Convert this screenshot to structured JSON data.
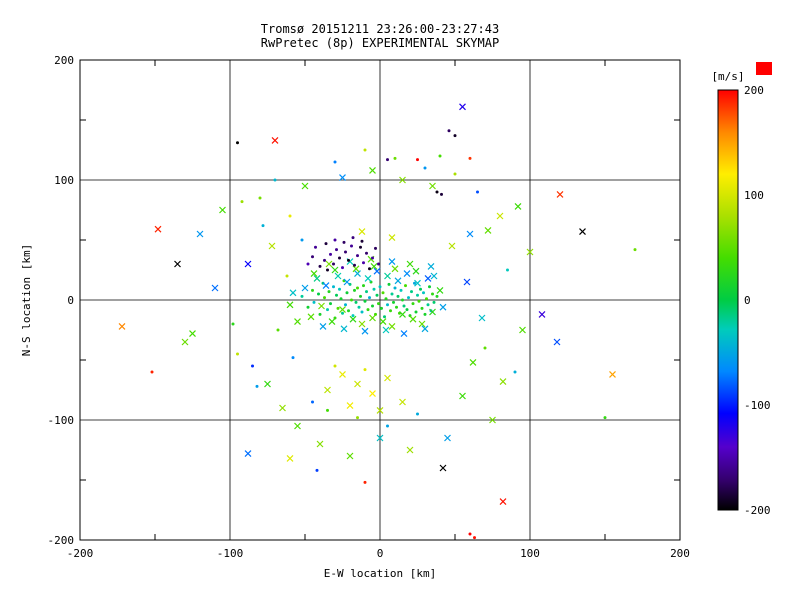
{
  "title": {
    "line1": "Tromsø 20151211 23:26:00-23:27:43",
    "line2": "RwPretec (8p) EXPERIMENTAL SKYMAP"
  },
  "colors": {
    "title": "#a03030",
    "axis": "#000000",
    "background": "#ffffff",
    "colorbar_label": "#ff0000",
    "corner_box": "#ff0000"
  },
  "chart_data": {
    "type": "scatter",
    "title": "Tromsø 20151211 23:26:00-23:27:43",
    "subtitle": "RwPretec (8p) EXPERIMENTAL SKYMAP",
    "xlabel": "E-W location [km]",
    "ylabel": "N-S location [km]",
    "xlim": [
      -200,
      200
    ],
    "ylim": [
      -200,
      200
    ],
    "grid": true,
    "x_tick_labels": [
      "-200",
      "-100",
      "0",
      "100",
      "200"
    ],
    "y_tick_labels": [
      "200",
      "100",
      "0",
      "-100",
      "-200"
    ],
    "colorbar": {
      "label": "[m/s]",
      "ticks": [
        "200",
        "100",
        "0",
        "-100",
        "-200"
      ],
      "range": [
        -200,
        200
      ],
      "stops": [
        [
          0,
          "#000000"
        ],
        [
          0.07,
          "#33006b"
        ],
        [
          0.15,
          "#5500cc"
        ],
        [
          0.23,
          "#0000ff"
        ],
        [
          0.33,
          "#0088ff"
        ],
        [
          0.43,
          "#00ccbb"
        ],
        [
          0.5,
          "#00cc44"
        ],
        [
          0.6,
          "#44dd00"
        ],
        [
          0.7,
          "#aae000"
        ],
        [
          0.8,
          "#ffee00"
        ],
        [
          0.9,
          "#ff8800"
        ],
        [
          1,
          "#ff0000"
        ]
      ]
    },
    "marker_legend": {
      "0": "dot",
      "1": "cross"
    },
    "points": [
      [
        -52,
        3,
        -20,
        0
      ],
      [
        -48,
        -6,
        10,
        0
      ],
      [
        -45,
        8,
        25,
        0
      ],
      [
        -44,
        -2,
        -35,
        0
      ],
      [
        -41,
        5,
        0,
        0
      ],
      [
        -40,
        -12,
        15,
        0
      ],
      [
        -38,
        14,
        -10,
        0
      ],
      [
        -37,
        2,
        40,
        0
      ],
      [
        -35,
        -8,
        -25,
        0
      ],
      [
        -34,
        7,
        20,
        0
      ],
      [
        -33,
        -3,
        5,
        0
      ],
      [
        -31,
        11,
        -40,
        0
      ],
      [
        -30,
        -15,
        30,
        0
      ],
      [
        -29,
        4,
        -5,
        0
      ],
      [
        -28,
        -7,
        45,
        0
      ],
      [
        -27,
        9,
        -30,
        0
      ],
      [
        -26,
        1,
        12,
        0
      ],
      [
        -25,
        -11,
        -18,
        0
      ],
      [
        -24,
        16,
        28,
        0
      ],
      [
        -23,
        -4,
        -42,
        0
      ],
      [
        -22,
        6,
        8,
        0
      ],
      [
        -21,
        -9,
        22,
        0
      ],
      [
        -20,
        13,
        -12,
        0
      ],
      [
        -19,
        0,
        35,
        0
      ],
      [
        -18,
        -13,
        -28,
        0
      ],
      [
        -17,
        8,
        18,
        0
      ],
      [
        -16,
        -2,
        -8,
        0
      ],
      [
        -15,
        10,
        42,
        0
      ],
      [
        -14,
        -6,
        -22,
        0
      ],
      [
        -13,
        3,
        15,
        0
      ],
      [
        -12,
        -10,
        -35,
        0
      ],
      [
        -11,
        12,
        25,
        0
      ],
      [
        -10,
        -1,
        5,
        0
      ],
      [
        -9,
        7,
        -15,
        0
      ],
      [
        -8,
        -8,
        30,
        0
      ],
      [
        -7,
        2,
        -45,
        0
      ],
      [
        -6,
        15,
        20,
        0
      ],
      [
        -5,
        -5,
        10,
        0
      ],
      [
        -4,
        9,
        -25,
        0
      ],
      [
        -3,
        -12,
        38,
        0
      ],
      [
        -2,
        4,
        -5,
        0
      ],
      [
        -1,
        -3,
        28,
        0
      ],
      [
        0,
        11,
        -32,
        0
      ],
      [
        1,
        -7,
        15,
        0
      ],
      [
        2,
        6,
        45,
        0
      ],
      [
        3,
        -14,
        -10,
        0
      ],
      [
        4,
        1,
        22,
        0
      ],
      [
        5,
        -4,
        -38,
        0
      ],
      [
        6,
        13,
        8,
        0
      ],
      [
        7,
        -9,
        32,
        0
      ],
      [
        8,
        5,
        -18,
        0
      ],
      [
        9,
        -2,
        12,
        0
      ],
      [
        10,
        10,
        -42,
        0
      ],
      [
        11,
        -6,
        25,
        0
      ],
      [
        12,
        3,
        -8,
        0
      ],
      [
        13,
        -11,
        35,
        0
      ],
      [
        14,
        8,
        -28,
        0
      ],
      [
        15,
        0,
        18,
        0
      ],
      [
        16,
        -5,
        -12,
        0
      ],
      [
        17,
        12,
        40,
        0
      ],
      [
        18,
        -8,
        5,
        0
      ],
      [
        19,
        2,
        -35,
        0
      ],
      [
        20,
        -13,
        22,
        0
      ],
      [
        21,
        7,
        -15,
        0
      ],
      [
        22,
        -3,
        30,
        0
      ],
      [
        23,
        14,
        -48,
        0
      ],
      [
        24,
        -10,
        10,
        0
      ],
      [
        25,
        4,
        -22,
        0
      ],
      [
        26,
        -1,
        38,
        0
      ],
      [
        27,
        9,
        -5,
        0
      ],
      [
        28,
        -7,
        25,
        0
      ],
      [
        29,
        6,
        -32,
        0
      ],
      [
        30,
        -12,
        15,
        0
      ],
      [
        31,
        1,
        42,
        0
      ],
      [
        32,
        -4,
        -18,
        0
      ],
      [
        33,
        11,
        8,
        0
      ],
      [
        34,
        -9,
        -45,
        0
      ],
      [
        35,
        5,
        28,
        0
      ],
      [
        36,
        -2,
        -10,
        0
      ],
      [
        38,
        3,
        20,
        0
      ],
      [
        -50,
        10,
        -55,
        1
      ],
      [
        -46,
        -14,
        48,
        1
      ],
      [
        -42,
        18,
        -15,
        1
      ],
      [
        -39,
        -5,
        60,
        1
      ],
      [
        -36,
        12,
        -70,
        1
      ],
      [
        -32,
        -18,
        35,
        1
      ],
      [
        -28,
        20,
        -25,
        1
      ],
      [
        -25,
        -8,
        52,
        1
      ],
      [
        -22,
        15,
        -60,
        1
      ],
      [
        -18,
        -16,
        28,
        1
      ],
      [
        -15,
        22,
        -45,
        1
      ],
      [
        -12,
        -20,
        65,
        1
      ],
      [
        -8,
        18,
        -30,
        1
      ],
      [
        -5,
        -15,
        50,
        1
      ],
      [
        -2,
        24,
        -75,
        1
      ],
      [
        2,
        -18,
        40,
        1
      ],
      [
        5,
        20,
        -20,
        1
      ],
      [
        8,
        -22,
        58,
        1
      ],
      [
        12,
        16,
        -50,
        1
      ],
      [
        15,
        -12,
        30,
        1
      ],
      [
        18,
        22,
        -65,
        1
      ],
      [
        22,
        -16,
        45,
        1
      ],
      [
        25,
        14,
        -35,
        1
      ],
      [
        28,
        -20,
        55,
        1
      ],
      [
        32,
        18,
        -80,
        1
      ],
      [
        35,
        -10,
        25,
        1
      ],
      [
        -44,
        22,
        40,
        1
      ],
      [
        -38,
        -22,
        -55,
        1
      ],
      [
        -30,
        25,
        30,
        1
      ],
      [
        -24,
        -24,
        -40,
        1
      ],
      [
        -16,
        26,
        50,
        1
      ],
      [
        -10,
        -26,
        -60,
        1
      ],
      [
        -4,
        28,
        35,
        1
      ],
      [
        4,
        -25,
        -30,
        1
      ],
      [
        10,
        26,
        55,
        1
      ],
      [
        16,
        -28,
        -70,
        1
      ],
      [
        24,
        24,
        25,
        1
      ],
      [
        30,
        -24,
        -50,
        1
      ],
      [
        -55,
        -18,
        45,
        1
      ],
      [
        -58,
        6,
        -35,
        1
      ],
      [
        40,
        8,
        30,
        1
      ],
      [
        42,
        -6,
        -55,
        1
      ],
      [
        -60,
        -4,
        38,
        1
      ],
      [
        36,
        20,
        -42,
        1
      ],
      [
        -34,
        30,
        60,
        1
      ],
      [
        -20,
        32,
        -28,
        1
      ],
      [
        -6,
        34,
        48,
        1
      ],
      [
        8,
        32,
        -58,
        1
      ],
      [
        20,
        30,
        36,
        1
      ],
      [
        34,
        28,
        -46,
        1
      ],
      [
        -40,
        28,
        -180,
        0
      ],
      [
        -37,
        33,
        -165,
        0
      ],
      [
        -35,
        25,
        -190,
        0
      ],
      [
        -33,
        38,
        -155,
        0
      ],
      [
        -31,
        30,
        -175,
        0
      ],
      [
        -29,
        42,
        -160,
        0
      ],
      [
        -27,
        35,
        -185,
        0
      ],
      [
        -25,
        27,
        -150,
        0
      ],
      [
        -23,
        40,
        -170,
        0
      ],
      [
        -21,
        33,
        -195,
        0
      ],
      [
        -19,
        45,
        -158,
        0
      ],
      [
        -17,
        29,
        -178,
        0
      ],
      [
        -15,
        37,
        -162,
        0
      ],
      [
        -13,
        44,
        -188,
        0
      ],
      [
        -11,
        31,
        -152,
        0
      ],
      [
        -9,
        39,
        -172,
        0
      ],
      [
        -7,
        26,
        -192,
        0
      ],
      [
        -5,
        35,
        -156,
        0
      ],
      [
        -3,
        43,
        -176,
        0
      ],
      [
        -1,
        30,
        -164,
        0
      ],
      [
        -36,
        47,
        -184,
        0
      ],
      [
        -30,
        50,
        -154,
        0
      ],
      [
        -24,
        48,
        -174,
        0
      ],
      [
        -18,
        52,
        -166,
        0
      ],
      [
        -12,
        49,
        -186,
        0
      ],
      [
        -45,
        36,
        -168,
        0
      ],
      [
        -43,
        44,
        -158,
        0
      ],
      [
        -48,
        30,
        -148,
        0
      ],
      [
        -120,
        55,
        -60,
        1
      ],
      [
        -105,
        75,
        40,
        1
      ],
      [
        -95,
        -45,
        90,
        0
      ],
      [
        -88,
        30,
        -110,
        1
      ],
      [
        -80,
        85,
        60,
        0
      ],
      [
        -75,
        -70,
        30,
        1
      ],
      [
        -70,
        100,
        -40,
        0
      ],
      [
        -65,
        -90,
        70,
        1
      ],
      [
        -60,
        70,
        110,
        0
      ],
      [
        -55,
        -105,
        45,
        1
      ],
      [
        -98,
        -20,
        25,
        0
      ],
      [
        -110,
        10,
        -75,
        1
      ],
      [
        -130,
        -35,
        55,
        1
      ],
      [
        -85,
        -55,
        -95,
        0
      ],
      [
        -72,
        45,
        85,
        1
      ],
      [
        60,
        55,
        -65,
        1
      ],
      [
        70,
        -40,
        50,
        0
      ],
      [
        80,
        70,
        95,
        1
      ],
      [
        90,
        -60,
        -45,
        0
      ],
      [
        100,
        40,
        70,
        1
      ],
      [
        55,
        -80,
        35,
        1
      ],
      [
        65,
        90,
        -85,
        0
      ],
      [
        75,
        -100,
        60,
        1
      ],
      [
        85,
        25,
        -30,
        0
      ],
      [
        95,
        -25,
        45,
        1
      ],
      [
        50,
        105,
        80,
        0
      ],
      [
        45,
        -115,
        -55,
        1
      ],
      [
        40,
        120,
        40,
        0
      ],
      [
        -40,
        -120,
        65,
        1
      ],
      [
        -30,
        115,
        -70,
        0
      ],
      [
        -20,
        -130,
        50,
        1
      ],
      [
        -10,
        125,
        90,
        0
      ],
      [
        0,
        -115,
        -35,
        1
      ],
      [
        10,
        118,
        55,
        0
      ],
      [
        20,
        -125,
        75,
        1
      ],
      [
        30,
        110,
        -60,
        0
      ],
      [
        -50,
        95,
        42,
        1
      ],
      [
        -45,
        -85,
        -78,
        0
      ],
      [
        35,
        95,
        58,
        1
      ],
      [
        25,
        -95,
        -48,
        0
      ],
      [
        15,
        100,
        66,
        1
      ],
      [
        5,
        -105,
        -52,
        0
      ],
      [
        -5,
        108,
        44,
        1
      ],
      [
        -15,
        -98,
        72,
        0
      ],
      [
        -25,
        102,
        -64,
        1
      ],
      [
        -35,
        -92,
        38,
        0
      ],
      [
        58,
        15,
        -88,
        1
      ],
      [
        -62,
        20,
        92,
        0
      ],
      [
        68,
        -15,
        -36,
        1
      ],
      [
        -68,
        -25,
        48,
        0
      ],
      [
        48,
        45,
        85,
        1
      ],
      [
        -52,
        50,
        -58,
        0
      ],
      [
        62,
        -52,
        44,
        1
      ],
      [
        -58,
        -48,
        -66,
        0
      ],
      [
        72,
        58,
        52,
        1
      ],
      [
        -78,
        62,
        -44,
        0
      ],
      [
        82,
        -68,
        68,
        1
      ],
      [
        -82,
        -72,
        -56,
        0
      ],
      [
        92,
        78,
        36,
        1
      ],
      [
        -92,
        82,
        74,
        0
      ],
      [
        -25,
        -62,
        110,
        1
      ],
      [
        -15,
        -70,
        95,
        1
      ],
      [
        -5,
        -78,
        120,
        1
      ],
      [
        5,
        -65,
        100,
        1
      ],
      [
        -35,
        -75,
        88,
        1
      ],
      [
        15,
        -85,
        92,
        1
      ],
      [
        -20,
        -88,
        115,
        1
      ],
      [
        0,
        -92,
        85,
        1
      ],
      [
        -30,
        -55,
        98,
        0
      ],
      [
        -10,
        -58,
        105,
        0
      ],
      [
        -148,
        59,
        190,
        1
      ],
      [
        -135,
        30,
        -200,
        1
      ],
      [
        -70,
        133,
        195,
        1
      ],
      [
        -95,
        131,
        -200,
        0
      ],
      [
        55,
        161,
        -120,
        1
      ],
      [
        50,
        137,
        -190,
        0
      ],
      [
        46,
        141,
        -175,
        0
      ],
      [
        25,
        117,
        200,
        0
      ],
      [
        135,
        57,
        -200,
        1
      ],
      [
        120,
        88,
        185,
        1
      ],
      [
        155,
        -62,
        150,
        1
      ],
      [
        150,
        -98,
        30,
        0
      ],
      [
        82,
        -168,
        195,
        1
      ],
      [
        42,
        -140,
        -200,
        1
      ],
      [
        60,
        -195,
        200,
        0
      ],
      [
        63,
        -198,
        195,
        0
      ],
      [
        -10,
        -152,
        190,
        0
      ],
      [
        -42,
        -142,
        -90,
        0
      ],
      [
        -172,
        -22,
        160,
        1
      ],
      [
        -152,
        -60,
        190,
        0
      ],
      [
        -125,
        -28,
        40,
        1
      ],
      [
        -88,
        -128,
        -75,
        1
      ],
      [
        -60,
        -132,
        105,
        1
      ],
      [
        108,
        -12,
        -130,
        1
      ],
      [
        118,
        -35,
        -85,
        1
      ],
      [
        170,
        42,
        55,
        0
      ],
      [
        38,
        90,
        -195,
        0
      ],
      [
        41,
        88,
        -185,
        0
      ],
      [
        5,
        117,
        -170,
        0
      ],
      [
        60,
        118,
        185,
        0
      ],
      [
        -12,
        57,
        102,
        1
      ],
      [
        8,
        52,
        96,
        1
      ]
    ]
  }
}
